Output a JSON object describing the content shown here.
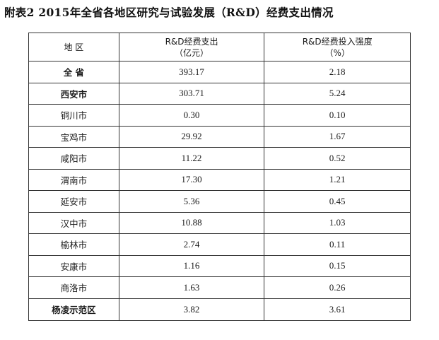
{
  "title": "附表2  2015年全省各地区研究与试验发展（R&D）经费支出情况",
  "table": {
    "headers": {
      "region": "地  区",
      "expenditure_line1": "R&D经费支出",
      "expenditure_line2": "（亿元）",
      "intensity_line1": "R&D经费投入强度",
      "intensity_line2": "（%）"
    },
    "rows": [
      {
        "region": "全  省",
        "expenditure": "393.17",
        "intensity": "2.18",
        "bold": true
      },
      {
        "region": "西安市",
        "expenditure": "303.71",
        "intensity": "5.24",
        "bold": true
      },
      {
        "region": "铜川市",
        "expenditure": "0.30",
        "intensity": "0.10",
        "bold": false
      },
      {
        "region": "宝鸡市",
        "expenditure": "29.92",
        "intensity": "1.67",
        "bold": false
      },
      {
        "region": "咸阳市",
        "expenditure": "11.22",
        "intensity": "0.52",
        "bold": false
      },
      {
        "region": "渭南市",
        "expenditure": "17.30",
        "intensity": "1.21",
        "bold": false
      },
      {
        "region": "延安市",
        "expenditure": "5.36",
        "intensity": "0.45",
        "bold": false
      },
      {
        "region": "汉中市",
        "expenditure": "10.88",
        "intensity": "1.03",
        "bold": false
      },
      {
        "region": "榆林市",
        "expenditure": "2.74",
        "intensity": "0.11",
        "bold": false
      },
      {
        "region": "安康市",
        "expenditure": "1.16",
        "intensity": "0.15",
        "bold": false
      },
      {
        "region": "商洛市",
        "expenditure": "1.63",
        "intensity": "0.26",
        "bold": false
      },
      {
        "region": "杨凌示范区",
        "expenditure": "3.82",
        "intensity": "3.61",
        "bold": true
      }
    ]
  }
}
